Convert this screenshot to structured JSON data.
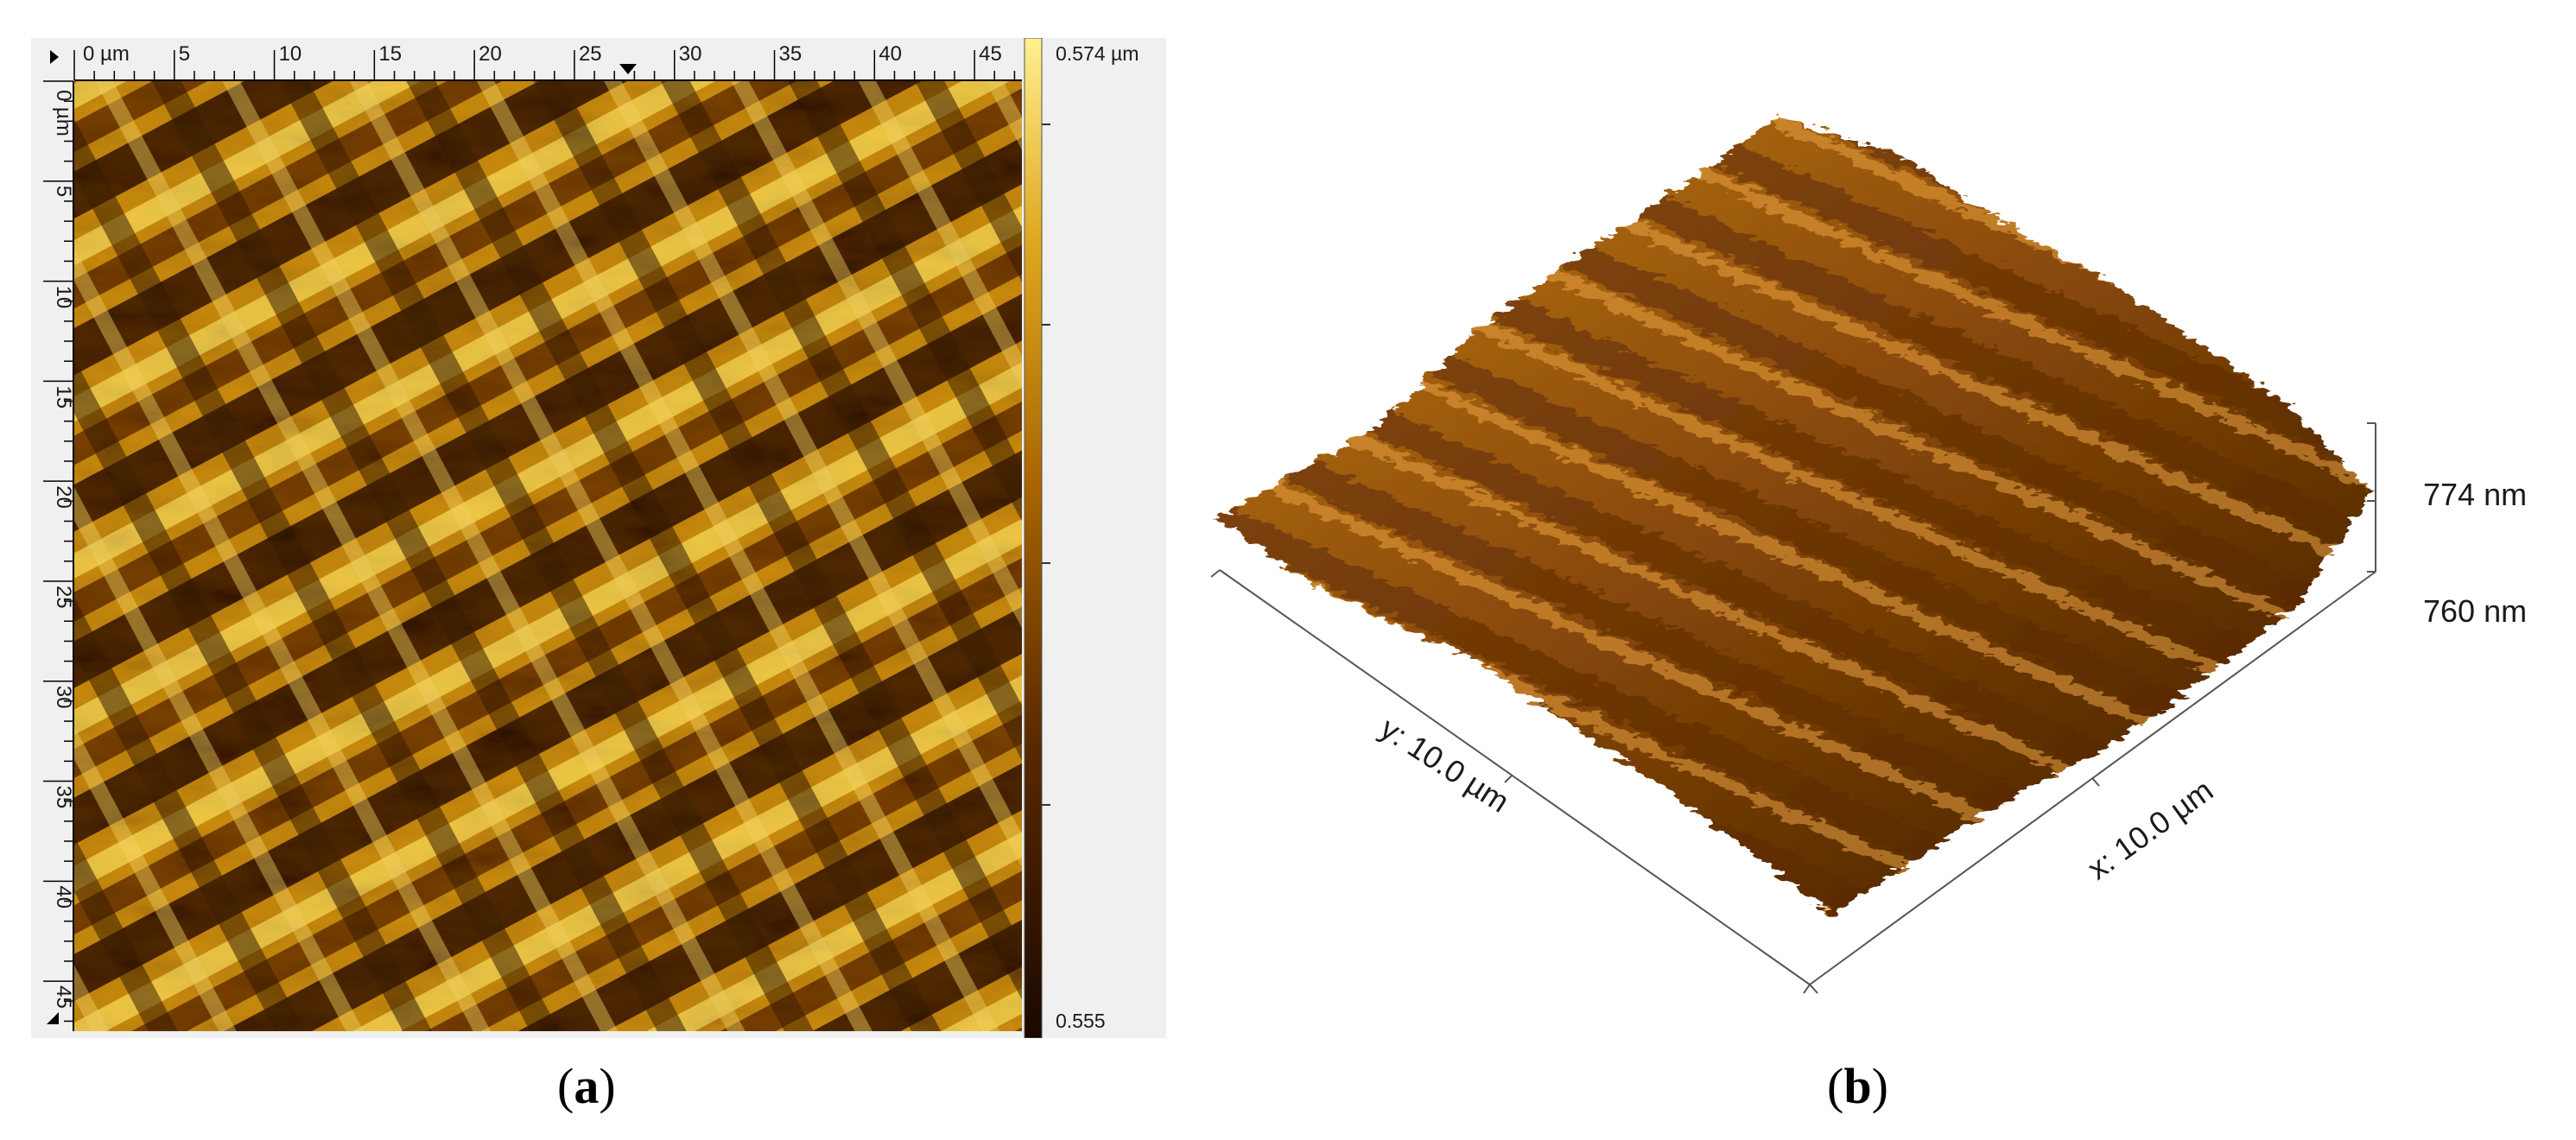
{
  "panel_a": {
    "x_ruler": {
      "unit_label": "0 µm",
      "ticks": [
        "5",
        "10",
        "15",
        "20",
        "25",
        "30",
        "35",
        "40",
        "45"
      ]
    },
    "y_ruler": {
      "unit_label": "0 µm",
      "ticks": [
        "5",
        "10",
        "15",
        "20",
        "25",
        "30",
        "35",
        "40",
        "45"
      ]
    },
    "colorbar": {
      "max_label": "0.574 µm",
      "min_label": "0.555",
      "colors": [
        "#1a0800",
        "#5a2a00",
        "#a86400",
        "#e0a820",
        "#fff090"
      ]
    },
    "caption": {
      "open": "(",
      "letter": "a",
      "close": ")"
    }
  },
  "panel_b": {
    "x_axis_label": "x: 10.0 µm",
    "y_axis_label": "y: 10.0 µm",
    "z_top_label": "774 nm",
    "z_bottom_label": "760 nm",
    "caption": {
      "open": "(",
      "letter": "b",
      "close": ")"
    }
  }
}
